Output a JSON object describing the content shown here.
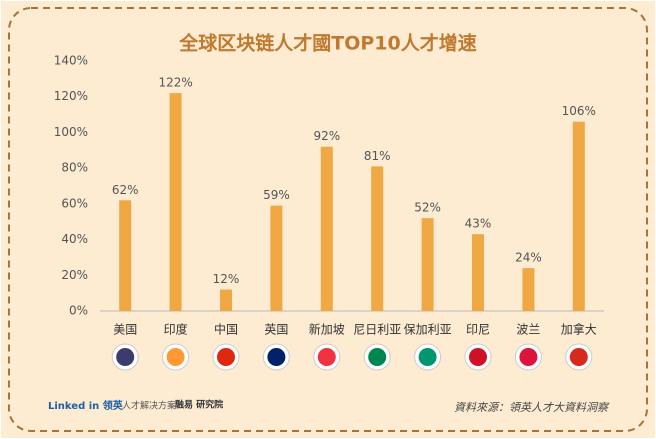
{
  "chart_data": {
    "type": "bar",
    "title": "全球区块链人才國TOP10人才增速",
    "categories": [
      "美国",
      "印度",
      "中国",
      "英国",
      "新加坡",
      "尼日利亚",
      "保加利亚",
      "印尼",
      "波兰",
      "加拿大"
    ],
    "values": [
      62,
      122,
      12,
      59,
      92,
      81,
      52,
      43,
      24,
      106
    ],
    "value_labels": [
      "62%",
      "122%",
      "12%",
      "59%",
      "92%",
      "81%",
      "52%",
      "43%",
      "24%",
      "106%"
    ],
    "color": "#f0a844",
    "ylim": [
      0,
      140
    ],
    "yticks": [
      {
        "value": 0,
        "label": "0%"
      },
      {
        "value": 20,
        "label": "20%"
      },
      {
        "value": 40,
        "label": "40%"
      },
      {
        "value": 60,
        "label": "60%"
      },
      {
        "value": 80,
        "label": "80%"
      },
      {
        "value": 100,
        "label": "100%"
      },
      {
        "value": 120,
        "label": "120%"
      },
      {
        "value": 140,
        "label": "140%"
      }
    ],
    "grid": false
  },
  "footer": {
    "brand_1": "Linked in 领英",
    "brand_1_sub": "人才解决方案",
    "brand_2": "融易 研究院",
    "source": "資料來源：領英人才大資料洞察"
  }
}
